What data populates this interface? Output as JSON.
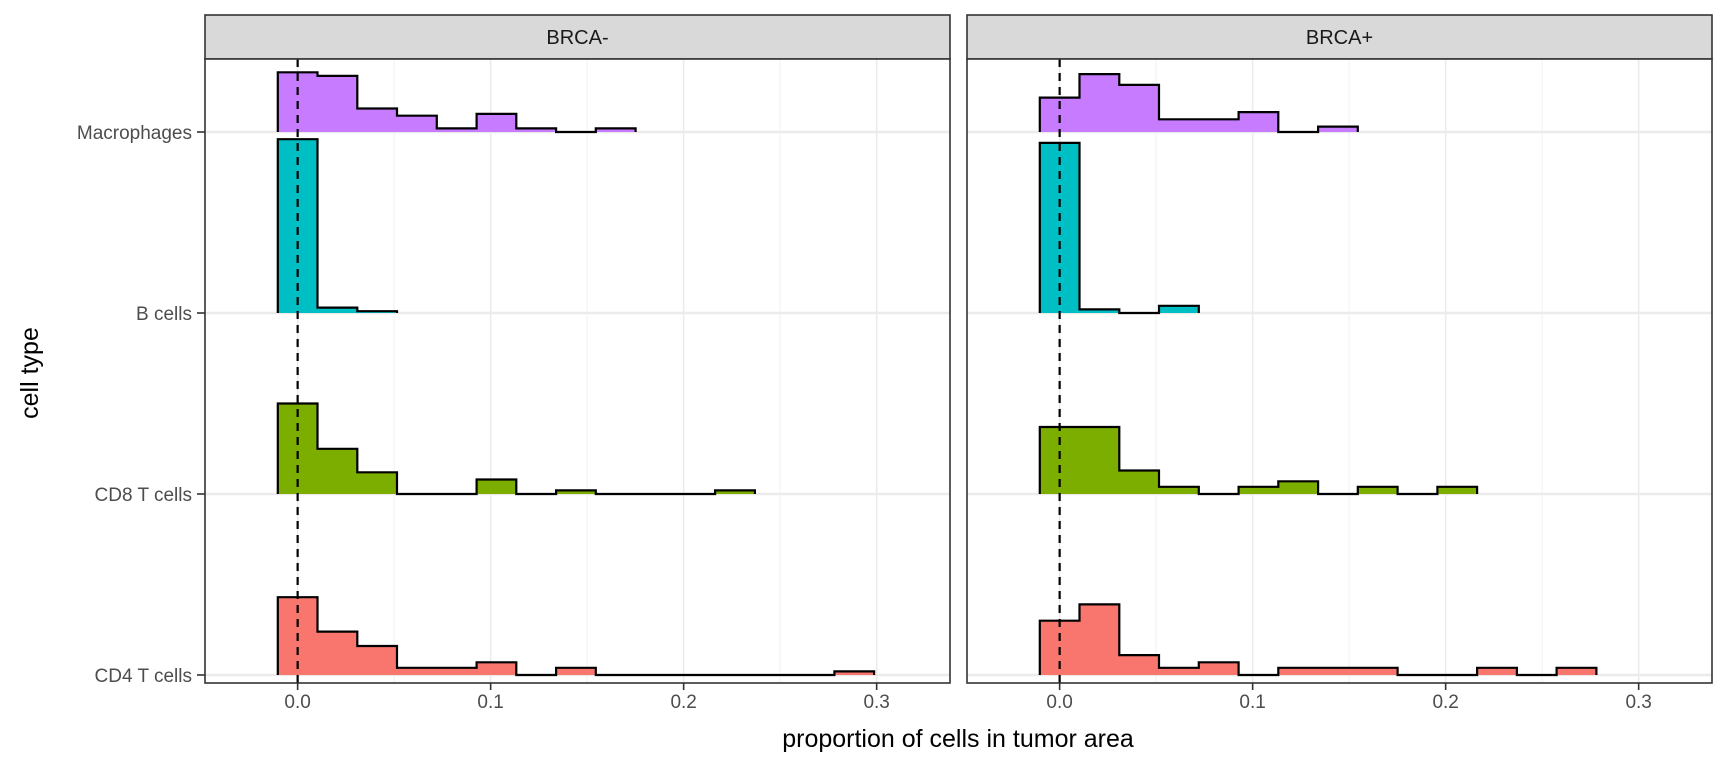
{
  "chart_data": {
    "type": "ridgeline-histogram",
    "xlabel": "proportion of cells in tumor area",
    "ylabel": "cell type",
    "xlim": [
      -0.048,
      0.338
    ],
    "x_ticks": [
      0.0,
      0.1,
      0.2,
      0.3
    ],
    "x_tick_labels": [
      "0.0",
      "0.1",
      "0.2",
      "0.3"
    ],
    "reference_line_x": 0.0,
    "bin_edges": [
      -0.0103,
      0.0103,
      0.0309,
      0.0515,
      0.0721,
      0.0927,
      0.1133,
      0.1339,
      0.1545,
      0.1751,
      0.1957,
      0.2163,
      0.2369,
      0.2575,
      0.2781,
      0.2987,
      0.3193
    ],
    "categories": [
      "CD4 T cells",
      "CD8 T cells",
      "B cells",
      "Macrophages"
    ],
    "category_colors": {
      "CD4 T cells": "#F8766D",
      "CD8 T cells": "#7CAE00",
      "B cells": "#00BFC4",
      "Macrophages": "#C77CFF"
    },
    "facets": [
      {
        "name": "BRCA-",
        "series": [
          {
            "name": "CD4 T cells",
            "values": [
              0.43,
              0.24,
              0.16,
              0.04,
              0.04,
              0.07,
              0.0,
              0.04,
              0.0,
              0.0,
              0.0,
              0.0,
              0.0,
              0.0,
              0.02,
              0.0
            ]
          },
          {
            "name": "CD8 T cells",
            "values": [
              0.5,
              0.25,
              0.12,
              0.0,
              0.0,
              0.08,
              0.0,
              0.02,
              0.0,
              0.0,
              0.0,
              0.02,
              0.0,
              0.0,
              0.0,
              0.0
            ]
          },
          {
            "name": "B cells",
            "values": [
              0.96,
              0.03,
              0.01,
              0.0,
              0.0,
              0.0,
              0.0,
              0.0,
              0.0,
              0.0,
              0.0,
              0.0,
              0.0,
              0.0,
              0.0,
              0.0
            ]
          },
          {
            "name": "Macrophages",
            "values": [
              0.33,
              0.31,
              0.13,
              0.09,
              0.02,
              0.1,
              0.02,
              0.0,
              0.02,
              0.0,
              0.0,
              0.0,
              0.0,
              0.0,
              0.0,
              0.0
            ]
          }
        ]
      },
      {
        "name": "BRCA+",
        "series": [
          {
            "name": "CD4 T cells",
            "values": [
              0.3,
              0.39,
              0.11,
              0.04,
              0.07,
              0.0,
              0.04,
              0.04,
              0.04,
              0.0,
              0.0,
              0.04,
              0.0,
              0.04,
              0.0,
              0.0
            ]
          },
          {
            "name": "CD8 T cells",
            "values": [
              0.37,
              0.37,
              0.13,
              0.04,
              0.0,
              0.04,
              0.07,
              0.0,
              0.04,
              0.0,
              0.04,
              0.0,
              0.0,
              0.0,
              0.0,
              0.0
            ]
          },
          {
            "name": "B cells",
            "values": [
              0.94,
              0.02,
              0.0,
              0.04,
              0.0,
              0.0,
              0.0,
              0.0,
              0.0,
              0.0,
              0.0,
              0.0,
              0.0,
              0.0,
              0.0,
              0.0
            ]
          },
          {
            "name": "Macrophages",
            "values": [
              0.19,
              0.32,
              0.26,
              0.07,
              0.07,
              0.11,
              0.0,
              0.03,
              0.0,
              0.0,
              0.0,
              0.0,
              0.0,
              0.0,
              0.0,
              0.0
            ]
          }
        ]
      }
    ],
    "grid": true,
    "legend": "none"
  }
}
